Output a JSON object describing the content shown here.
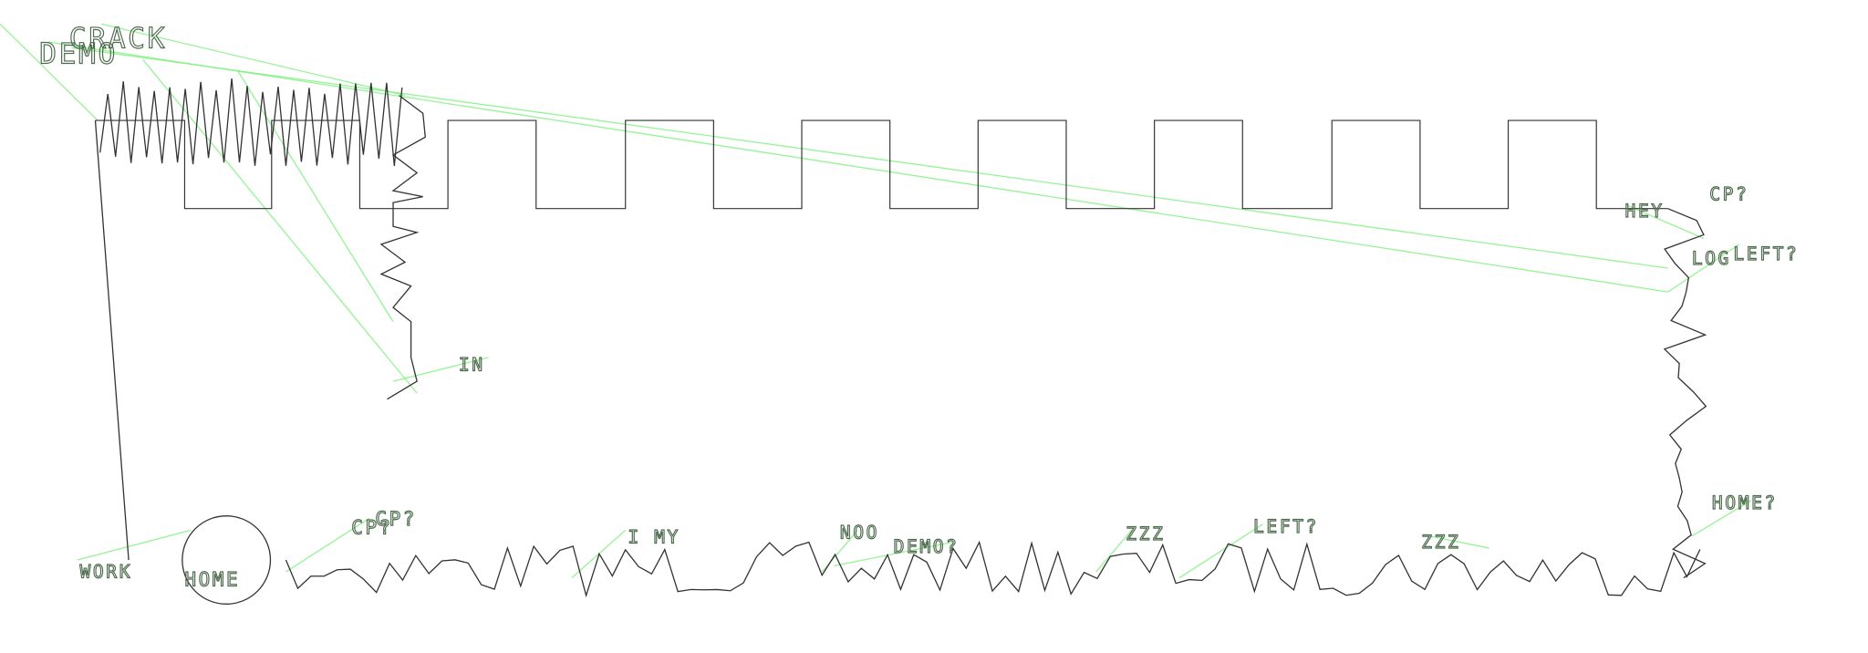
{
  "colors": {
    "path": "#333333",
    "connector": "#7cf07c",
    "label": "#4a6a4a"
  },
  "labels": [
    {
      "id": "demo",
      "text": "DEMO"
    },
    {
      "id": "crack",
      "text": "CRACK"
    },
    {
      "id": "in",
      "text": "IN"
    },
    {
      "id": "work",
      "text": "WORK"
    },
    {
      "id": "home",
      "text": "HOME"
    },
    {
      "id": "cp1",
      "text": "CP?"
    },
    {
      "id": "cps",
      "text": "CP?"
    },
    {
      "id": "imy",
      "text": "I MY"
    },
    {
      "id": "noo",
      "text": "NOO"
    },
    {
      "id": "demoq",
      "text": "DEMO?"
    },
    {
      "id": "zzz1",
      "text": "ZZZ"
    },
    {
      "id": "leftq1",
      "text": "LEFT?"
    },
    {
      "id": "zzz2",
      "text": "ZZZ"
    },
    {
      "id": "hey",
      "text": "HEY"
    },
    {
      "id": "cp2",
      "text": "CP?"
    },
    {
      "id": "log",
      "text": "LOG"
    },
    {
      "id": "leftq2",
      "text": "LEFT?"
    },
    {
      "id": "homeq",
      "text": "HOME?"
    }
  ]
}
